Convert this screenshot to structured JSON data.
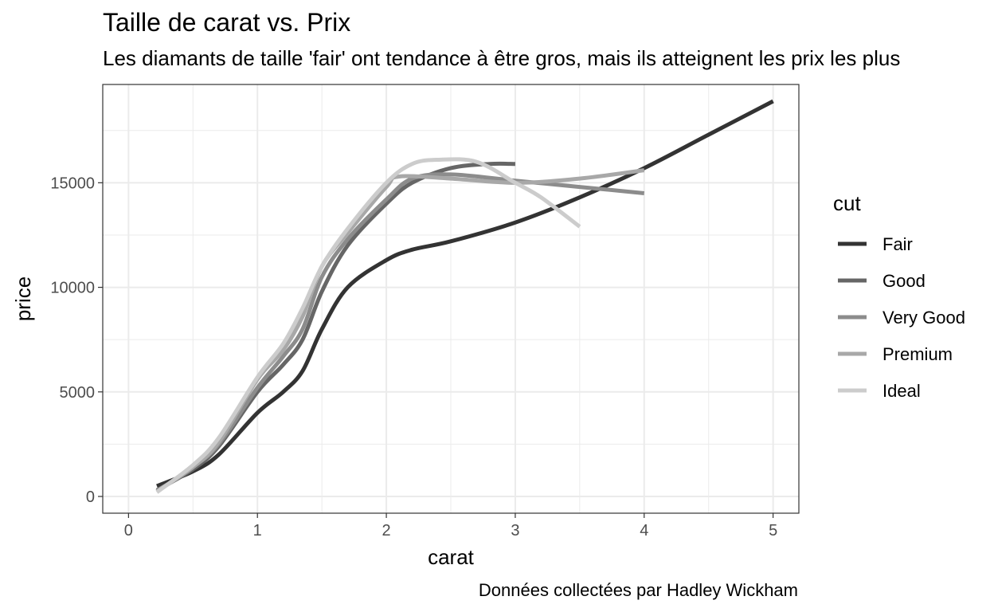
{
  "chart_data": {
    "type": "line",
    "title": "Taille de carat vs. Prix",
    "subtitle": "Les diamants de taille 'fair' ont tendance à être gros, mais ils atteignent les prix les plus",
    "caption": "Données collectées par Hadley Wickham",
    "xlabel": "carat",
    "ylabel": "price",
    "xlim": [
      -0.2,
      5.2
    ],
    "ylim": [
      -800,
      19700
    ],
    "x_ticks": [
      0,
      1,
      2,
      3,
      4,
      5
    ],
    "y_ticks": [
      0,
      5000,
      10000,
      15000
    ],
    "x_tick_labels": [
      "0",
      "1",
      "2",
      "3",
      "4",
      "5"
    ],
    "y_tick_labels": [
      "0",
      "5000",
      "10000",
      "15000"
    ],
    "grid": true,
    "legend": {
      "title": "cut",
      "position": "right"
    },
    "series": [
      {
        "name": "Fair",
        "color": "#333333",
        "x": [
          0.22,
          0.5,
          0.7,
          1.0,
          1.2,
          1.35,
          1.5,
          1.7,
          2.0,
          2.2,
          2.5,
          3.0,
          3.5,
          4.0,
          4.5,
          5.0
        ],
        "y": [
          500,
          1200,
          2000,
          4000,
          5000,
          6000,
          8000,
          10000,
          11300,
          11800,
          12200,
          13100,
          14300,
          15700,
          17300,
          18900
        ]
      },
      {
        "name": "Good",
        "color": "#666666",
        "x": [
          0.22,
          0.5,
          0.7,
          1.0,
          1.2,
          1.35,
          1.5,
          1.7,
          2.0,
          2.2,
          2.5,
          2.8,
          3.0
        ],
        "y": [
          300,
          1300,
          2400,
          5000,
          6300,
          7500,
          9800,
          12000,
          14000,
          15000,
          15700,
          15900,
          15900
        ]
      },
      {
        "name": "Very Good",
        "color": "#8c8c8c",
        "x": [
          0.22,
          0.5,
          0.7,
          1.0,
          1.2,
          1.35,
          1.5,
          1.7,
          2.0,
          2.2,
          2.5,
          3.0,
          3.5,
          4.0
        ],
        "y": [
          250,
          1400,
          2500,
          5200,
          6700,
          8000,
          10500,
          12300,
          14200,
          15200,
          15400,
          15100,
          14800,
          14500
        ]
      },
      {
        "name": "Premium",
        "color": "#a8a8a8",
        "x": [
          0.22,
          0.5,
          0.7,
          1.0,
          1.2,
          1.35,
          1.5,
          1.7,
          2.0,
          2.1,
          2.5,
          3.0,
          3.5,
          4.0
        ],
        "y": [
          250,
          1400,
          2600,
          5600,
          7000,
          8600,
          11000,
          12600,
          14800,
          15300,
          15200,
          15000,
          15200,
          15600
        ]
      },
      {
        "name": "Ideal",
        "color": "#cccccc",
        "x": [
          0.22,
          0.5,
          0.7,
          1.0,
          1.2,
          1.35,
          1.5,
          1.7,
          2.0,
          2.2,
          2.4,
          2.7,
          3.0,
          3.2,
          3.5
        ],
        "y": [
          200,
          1500,
          2800,
          5700,
          7300,
          9000,
          11000,
          12800,
          15000,
          15900,
          16100,
          16000,
          15000,
          14300,
          12900
        ]
      }
    ]
  }
}
